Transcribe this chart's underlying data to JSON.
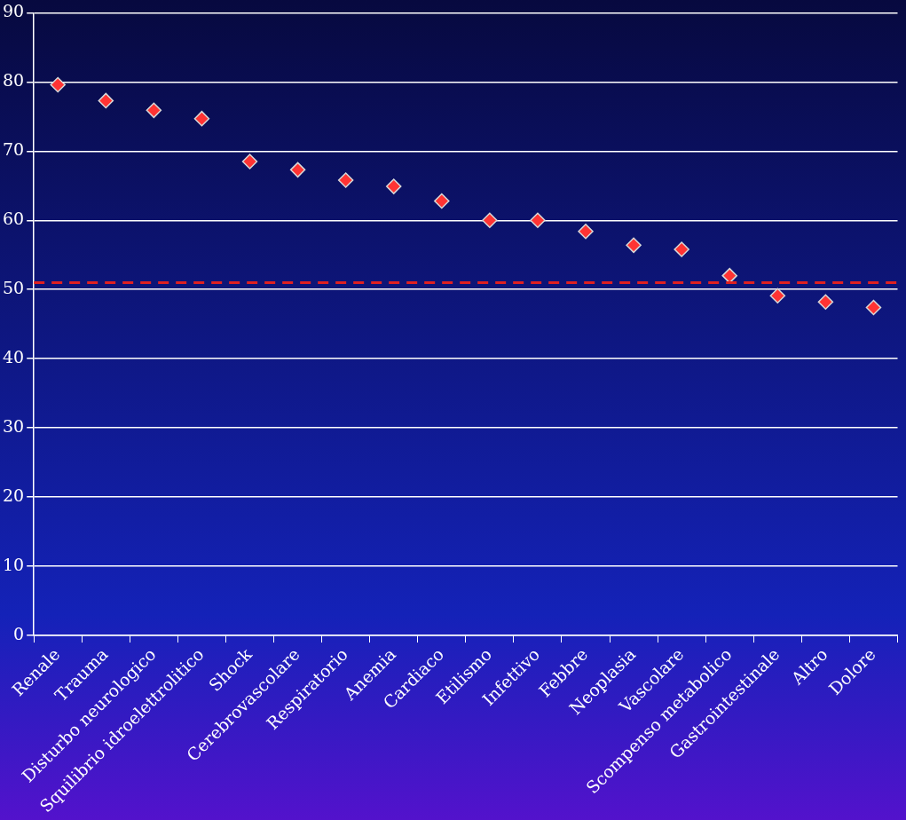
{
  "chart_data": {
    "type": "scatter",
    "categories": [
      "Renale",
      "Trauma",
      "Disturbo neurologico",
      "Squilibrio idroelettrolitico",
      "Shock",
      "Cerebrovascolare",
      "Respiratorio",
      "Anemia",
      "Cardiaco",
      "Etilismo",
      "Infettivo",
      "Febbre",
      "Neoplasia",
      "Vascolare",
      "Scompenso metabolico",
      "Gastrointestinale",
      "Altro",
      "Dolore"
    ],
    "series": [
      {
        "color": "#ff3333",
        "values": [
          79.6,
          77.3,
          75.9,
          74.7,
          68.5,
          67.3,
          65.8,
          64.9,
          62.8,
          60.0,
          60.0,
          58.4,
          56.4,
          55.8,
          52.0,
          49.1,
          48.2,
          47.4
        ]
      }
    ],
    "ylim": [
      0,
      90
    ],
    "yticks": [
      0,
      10,
      20,
      30,
      40,
      50,
      60,
      70,
      80,
      90
    ],
    "grid": "y",
    "legend": false,
    "marker": "diamond",
    "ref_lines": [
      {
        "axis": "y",
        "value": 51,
        "color": "#e02020",
        "line_style": "dashed"
      }
    ]
  }
}
